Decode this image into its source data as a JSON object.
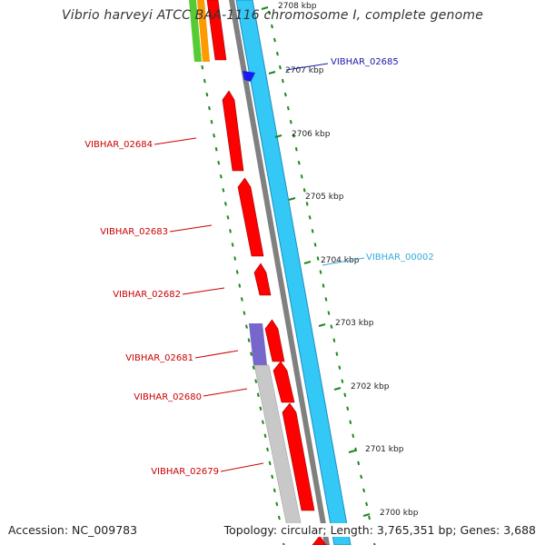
{
  "title": "Vibrio harveyi ATCC BAA-1116 chromosome I, complete genome",
  "ticks": [
    {
      "label": "2700 kbp"
    },
    {
      "label": "2701 kbp"
    },
    {
      "label": "2702 kbp"
    },
    {
      "label": "2703 kbp"
    },
    {
      "label": "2704 kbp"
    },
    {
      "label": "2705 kbp"
    },
    {
      "label": "2706 kbp"
    },
    {
      "label": "2707 kbp"
    },
    {
      "label": "2708 kbp"
    }
  ],
  "gene_labels": [
    {
      "id": "VIBHAR_02685",
      "color": "#1a1aa6"
    },
    {
      "id": "VIBHAR_02684",
      "color": "#cc0000"
    },
    {
      "id": "VIBHAR_02683",
      "color": "#cc0000"
    },
    {
      "id": "VIBHAR_00002",
      "color": "#33aadd"
    },
    {
      "id": "VIBHAR_02682",
      "color": "#cc0000"
    },
    {
      "id": "VIBHAR_02681",
      "color": "#cc0000"
    },
    {
      "id": "VIBHAR_02680",
      "color": "#cc0000"
    },
    {
      "id": "VIBHAR_02679",
      "color": "#cc0000"
    }
  ],
  "colors": {
    "cds_red": "#ff0000",
    "cds_reverse_blue": "#33c8f5",
    "backbone_grey": "#808080",
    "gc_green": "#1a8a1a",
    "rna_purple": "#7766cc",
    "other_grey": "#c8c8c8",
    "trna_orange": "#ff9900",
    "misc_green": "#55cc33"
  },
  "footer": {
    "accession": "Accession: NC_009783",
    "stats": "Topology: circular; Length: 3,765,351 bp; Genes: 3,688"
  }
}
